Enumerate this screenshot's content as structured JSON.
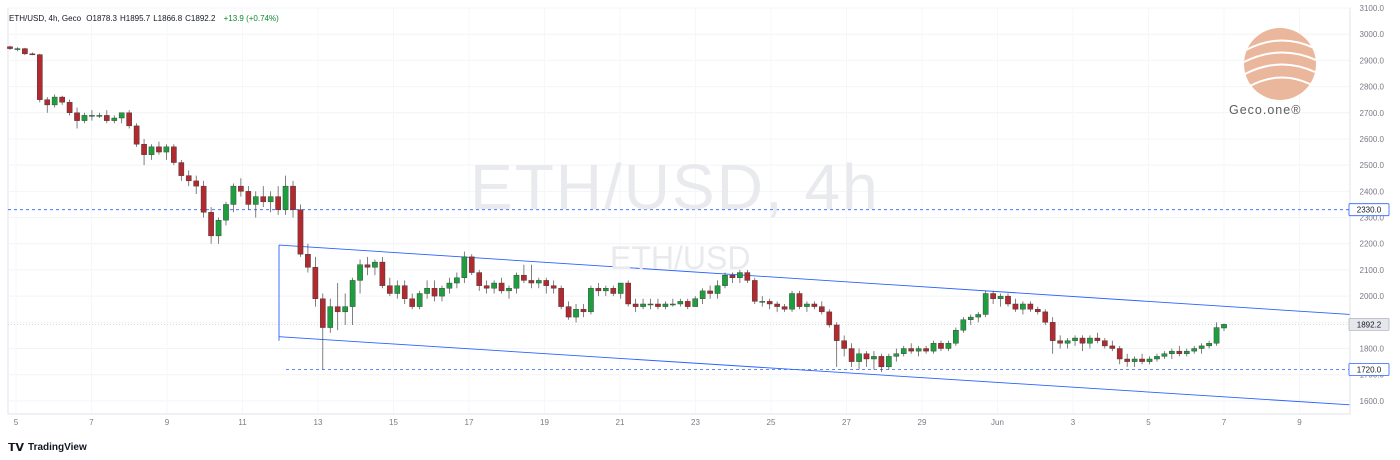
{
  "header": {
    "symbol": "ETH/USD, 4h, Geco",
    "ohlc": [
      {
        "key": "O",
        "value": "1878.3"
      },
      {
        "key": "H",
        "value": "1895.7"
      },
      {
        "key": "L",
        "value": "1866.8"
      },
      {
        "key": "C",
        "value": "1892.2"
      }
    ],
    "change": "+13.9 (+0.74%)"
  },
  "watermark": {
    "main": "ETH/USD, 4h",
    "sub": "ETH/USD"
  },
  "logo": {
    "label": "Geco.one®",
    "color": "#e8b59a"
  },
  "footer": {
    "brand": "TradingView"
  },
  "colors": {
    "up": "#1e9e3e",
    "down": "#b02a30",
    "channel": "#2962ff",
    "level_line": "#2962ff"
  },
  "chart_data": {
    "type": "candlestick",
    "ylim": [
      1550,
      3100
    ],
    "yticks": [
      "1600.0",
      "1700.0",
      "1800.0",
      "1900.0",
      "2000.0",
      "2100.0",
      "2200.0",
      "2300.0",
      "2400.0",
      "2500.0",
      "2600.0",
      "2700.0",
      "2800.0",
      "2900.0",
      "3000.0",
      "3100.0"
    ],
    "xticks": [
      "5",
      "7",
      "9",
      "11",
      "13",
      "15",
      "17",
      "19",
      "21",
      "23",
      "25",
      "27",
      "29",
      "Jun",
      "3",
      "5",
      "7",
      "9"
    ],
    "price_labels": [
      {
        "text": "2330.0",
        "value": 2330,
        "style": "level"
      },
      {
        "text": "1892.2",
        "value": 1892.2,
        "style": "last"
      },
      {
        "text": "1720.0",
        "value": 1720,
        "style": "level"
      }
    ],
    "horizontal_levels": [
      2330,
      1720
    ],
    "channel": {
      "upper": [
        {
          "x": 0,
          "y": 2195
        },
        {
          "x": 1,
          "y": 1930
        }
      ],
      "lower": [
        {
          "x": 0,
          "y": 1845
        },
        {
          "x": 1,
          "y": 1585
        }
      ]
    },
    "candles": [
      [
        2952,
        2956,
        2940,
        2945
      ],
      [
        2945,
        2950,
        2935,
        2945
      ],
      [
        2945,
        2948,
        2920,
        2925
      ],
      [
        2925,
        2930,
        2920,
        2922
      ],
      [
        2922,
        2925,
        2740,
        2750
      ],
      [
        2750,
        2760,
        2700,
        2730
      ],
      [
        2730,
        2770,
        2720,
        2760
      ],
      [
        2760,
        2765,
        2730,
        2740
      ],
      [
        2740,
        2750,
        2690,
        2700
      ],
      [
        2700,
        2720,
        2640,
        2670
      ],
      [
        2670,
        2700,
        2660,
        2690
      ],
      [
        2690,
        2710,
        2670,
        2690
      ],
      [
        2690,
        2700,
        2680,
        2690
      ],
      [
        2690,
        2710,
        2660,
        2670
      ],
      [
        2670,
        2690,
        2660,
        2680
      ],
      [
        2680,
        2700,
        2660,
        2700
      ],
      [
        2700,
        2710,
        2640,
        2650
      ],
      [
        2650,
        2660,
        2570,
        2580
      ],
      [
        2580,
        2600,
        2500,
        2540
      ],
      [
        2540,
        2580,
        2520,
        2570
      ],
      [
        2570,
        2590,
        2540,
        2550
      ],
      [
        2550,
        2580,
        2520,
        2570
      ],
      [
        2570,
        2580,
        2500,
        2510
      ],
      [
        2510,
        2520,
        2440,
        2460
      ],
      [
        2460,
        2480,
        2420,
        2440
      ],
      [
        2440,
        2460,
        2390,
        2420
      ],
      [
        2420,
        2440,
        2300,
        2320
      ],
      [
        2320,
        2340,
        2200,
        2230
      ],
      [
        2230,
        2300,
        2200,
        2290
      ],
      [
        2290,
        2360,
        2270,
        2350
      ],
      [
        2350,
        2430,
        2320,
        2420
      ],
      [
        2420,
        2450,
        2380,
        2400
      ],
      [
        2400,
        2420,
        2330,
        2350
      ],
      [
        2350,
        2400,
        2300,
        2380
      ],
      [
        2380,
        2420,
        2340,
        2360
      ],
      [
        2360,
        2400,
        2320,
        2380
      ],
      [
        2380,
        2420,
        2310,
        2330
      ],
      [
        2330,
        2460,
        2310,
        2420
      ],
      [
        2420,
        2440,
        2300,
        2330
      ],
      [
        2330,
        2350,
        2150,
        2160
      ],
      [
        2160,
        2200,
        2090,
        2110
      ],
      [
        2110,
        2150,
        1960,
        1990
      ],
      [
        1990,
        2010,
        1720,
        1880
      ],
      [
        1880,
        1990,
        1860,
        1960
      ],
      [
        1960,
        2050,
        1870,
        1940
      ],
      [
        1940,
        2010,
        1890,
        1960
      ],
      [
        1960,
        2070,
        1890,
        2060
      ],
      [
        2060,
        2140,
        2010,
        2120
      ],
      [
        2120,
        2150,
        2080,
        2110
      ],
      [
        2110,
        2140,
        2080,
        2130
      ],
      [
        2130,
        2150,
        2030,
        2040
      ],
      [
        2040,
        2070,
        2000,
        2010
      ],
      [
        2010,
        2060,
        1990,
        2040
      ],
      [
        2040,
        2060,
        1970,
        1990
      ],
      [
        1990,
        2010,
        1950,
        1960
      ],
      [
        1960,
        2020,
        1950,
        2010
      ],
      [
        2010,
        2060,
        1990,
        2030
      ],
      [
        2030,
        2060,
        1980,
        2000
      ],
      [
        2000,
        2040,
        1980,
        2030
      ],
      [
        2030,
        2070,
        2010,
        2050
      ],
      [
        2050,
        2090,
        2030,
        2070
      ],
      [
        2070,
        2170,
        2050,
        2150
      ],
      [
        2150,
        2160,
        2080,
        2090
      ],
      [
        2090,
        2100,
        2020,
        2040
      ],
      [
        2040,
        2060,
        2010,
        2030
      ],
      [
        2030,
        2060,
        2010,
        2050
      ],
      [
        2050,
        2070,
        2010,
        2020
      ],
      [
        2020,
        2040,
        1990,
        2030
      ],
      [
        2030,
        2090,
        2010,
        2080
      ],
      [
        2080,
        2120,
        2050,
        2060
      ],
      [
        2060,
        2120,
        2030,
        2050
      ],
      [
        2050,
        2070,
        2030,
        2060
      ],
      [
        2060,
        2070,
        2010,
        2040
      ],
      [
        2040,
        2060,
        2010,
        2030
      ],
      [
        2030,
        2040,
        1950,
        1960
      ],
      [
        1960,
        1980,
        1910,
        1920
      ],
      [
        1920,
        1970,
        1900,
        1950
      ],
      [
        1950,
        1970,
        1920,
        1940
      ],
      [
        1940,
        2040,
        1930,
        2030
      ],
      [
        2030,
        2050,
        2000,
        2020
      ],
      [
        2020,
        2040,
        2000,
        2030
      ],
      [
        2030,
        2040,
        2000,
        2010
      ],
      [
        2010,
        2050,
        1990,
        2050
      ],
      [
        2050,
        2060,
        1960,
        1970
      ],
      [
        1970,
        1990,
        1940,
        1960
      ],
      [
        1960,
        1990,
        1950,
        1970
      ],
      [
        1970,
        1990,
        1950,
        1970
      ],
      [
        1970,
        1990,
        1950,
        1960
      ],
      [
        1960,
        1980,
        1950,
        1970
      ],
      [
        1970,
        1990,
        1960,
        1970
      ],
      [
        1970,
        1990,
        1960,
        1980
      ],
      [
        1980,
        1990,
        1950,
        1960
      ],
      [
        1960,
        2000,
        1960,
        1990
      ],
      [
        1990,
        2030,
        1970,
        2020
      ],
      [
        2020,
        2040,
        1990,
        2010
      ],
      [
        2010,
        2060,
        1990,
        2040
      ],
      [
        2040,
        2090,
        2030,
        2080
      ],
      [
        2080,
        2090,
        2050,
        2070
      ],
      [
        2070,
        2100,
        2050,
        2090
      ],
      [
        2090,
        2100,
        2050,
        2060
      ],
      [
        2060,
        2070,
        1970,
        1980
      ],
      [
        1980,
        2000,
        1960,
        1980
      ],
      [
        1980,
        1990,
        1950,
        1970
      ],
      [
        1970,
        1980,
        1940,
        1960
      ],
      [
        1960,
        1970,
        1940,
        1950
      ],
      [
        1950,
        2020,
        1940,
        2010
      ],
      [
        2010,
        2020,
        1950,
        1960
      ],
      [
        1960,
        1980,
        1940,
        1970
      ],
      [
        1970,
        1980,
        1950,
        1960
      ],
      [
        1960,
        1980,
        1930,
        1940
      ],
      [
        1940,
        1950,
        1880,
        1890
      ],
      [
        1890,
        1900,
        1730,
        1830
      ],
      [
        1830,
        1850,
        1770,
        1800
      ],
      [
        1800,
        1820,
        1730,
        1750
      ],
      [
        1750,
        1800,
        1720,
        1780
      ],
      [
        1780,
        1790,
        1730,
        1760
      ],
      [
        1760,
        1790,
        1720,
        1770
      ],
      [
        1770,
        1780,
        1710,
        1730
      ],
      [
        1730,
        1780,
        1720,
        1770
      ],
      [
        1770,
        1800,
        1750,
        1780
      ],
      [
        1780,
        1810,
        1770,
        1800
      ],
      [
        1800,
        1820,
        1780,
        1790
      ],
      [
        1790,
        1810,
        1770,
        1800
      ],
      [
        1800,
        1810,
        1780,
        1790
      ],
      [
        1790,
        1830,
        1780,
        1820
      ],
      [
        1820,
        1830,
        1790,
        1800
      ],
      [
        1800,
        1830,
        1790,
        1820
      ],
      [
        1820,
        1880,
        1810,
        1870
      ],
      [
        1870,
        1920,
        1860,
        1910
      ],
      [
        1910,
        1930,
        1890,
        1920
      ],
      [
        1920,
        1940,
        1900,
        1930
      ],
      [
        1930,
        2020,
        1920,
        2010
      ],
      [
        2010,
        2020,
        1970,
        1990
      ],
      [
        1990,
        2010,
        1960,
        2000
      ],
      [
        2000,
        2010,
        1960,
        1970
      ],
      [
        1970,
        1990,
        1940,
        1950
      ],
      [
        1950,
        1980,
        1930,
        1970
      ],
      [
        1970,
        1980,
        1940,
        1950
      ],
      [
        1950,
        1960,
        1930,
        1940
      ],
      [
        1940,
        1950,
        1890,
        1900
      ],
      [
        1900,
        1920,
        1780,
        1830
      ],
      [
        1830,
        1850,
        1800,
        1820
      ],
      [
        1820,
        1840,
        1800,
        1830
      ],
      [
        1830,
        1850,
        1810,
        1840
      ],
      [
        1840,
        1850,
        1790,
        1820
      ],
      [
        1820,
        1850,
        1800,
        1840
      ],
      [
        1840,
        1860,
        1820,
        1830
      ],
      [
        1830,
        1840,
        1800,
        1810
      ],
      [
        1810,
        1830,
        1790,
        1800
      ],
      [
        1800,
        1810,
        1740,
        1760
      ],
      [
        1760,
        1780,
        1730,
        1750
      ],
      [
        1750,
        1770,
        1730,
        1760
      ],
      [
        1760,
        1780,
        1740,
        1750
      ],
      [
        1750,
        1770,
        1740,
        1760
      ],
      [
        1760,
        1780,
        1750,
        1770
      ],
      [
        1770,
        1790,
        1760,
        1780
      ],
      [
        1780,
        1800,
        1760,
        1790
      ],
      [
        1790,
        1810,
        1770,
        1780
      ],
      [
        1780,
        1800,
        1770,
        1790
      ],
      [
        1790,
        1810,
        1780,
        1800
      ],
      [
        1800,
        1820,
        1780,
        1810
      ],
      [
        1810,
        1830,
        1800,
        1820
      ],
      [
        1820,
        1900,
        1810,
        1880
      ],
      [
        1878.3,
        1895.7,
        1866.8,
        1892.2
      ]
    ]
  }
}
